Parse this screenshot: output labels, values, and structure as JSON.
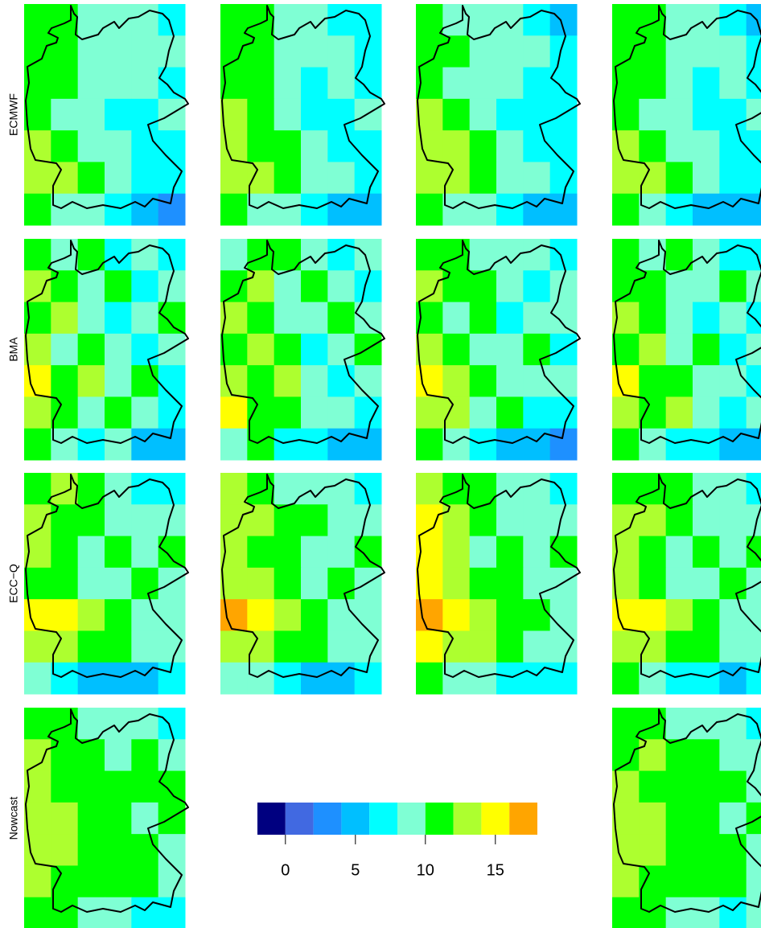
{
  "chart_data": {
    "type": "heatmap",
    "row_labels": [
      "ECMWF",
      "BMA",
      "ECC−Q",
      "Nowcast"
    ],
    "panels": [
      [
        [
          [
            11,
            11,
            9,
            8,
            8,
            6
          ],
          [
            11,
            11,
            9,
            9,
            9,
            8
          ],
          [
            11,
            11,
            9,
            8,
            8,
            7
          ],
          [
            11,
            9,
            9,
            7,
            7,
            9
          ],
          [
            13,
            11,
            9,
            9,
            7,
            7
          ],
          [
            13,
            13,
            11,
            9,
            7,
            7
          ],
          [
            11,
            9,
            9,
            7,
            5,
            3
          ]
        ],
        [
          [
            11,
            11,
            9,
            8,
            7,
            6
          ],
          [
            11,
            11,
            9,
            9,
            9,
            7
          ],
          [
            11,
            11,
            9,
            7,
            8,
            7
          ],
          [
            13,
            11,
            9,
            7,
            7,
            9
          ],
          [
            13,
            11,
            11,
            9,
            7,
            7
          ],
          [
            13,
            13,
            11,
            9,
            8,
            7
          ],
          [
            11,
            9,
            9,
            7,
            5,
            5
          ]
        ],
        [
          [
            11,
            9,
            9,
            8,
            7,
            5
          ],
          [
            11,
            11,
            9,
            9,
            8,
            7
          ],
          [
            11,
            9,
            9,
            8,
            7,
            7
          ],
          [
            13,
            11,
            9,
            7,
            7,
            7
          ],
          [
            13,
            13,
            11,
            9,
            7,
            7
          ],
          [
            13,
            13,
            11,
            9,
            8,
            7
          ],
          [
            11,
            9,
            9,
            7,
            5,
            5
          ]
        ],
        [
          [
            11,
            11,
            9,
            8,
            7,
            5
          ],
          [
            11,
            11,
            9,
            9,
            9,
            7
          ],
          [
            11,
            11,
            9,
            7,
            8,
            7
          ],
          [
            11,
            9,
            9,
            7,
            7,
            9
          ],
          [
            13,
            11,
            9,
            9,
            7,
            7
          ],
          [
            13,
            13,
            11,
            9,
            7,
            7
          ],
          [
            11,
            9,
            7,
            5,
            5,
            5
          ]
        ]
      ],
      [
        [
          [
            11,
            9,
            11,
            7,
            9,
            7
          ],
          [
            13,
            11,
            9,
            11,
            7,
            9
          ],
          [
            11,
            13,
            9,
            7,
            9,
            11
          ],
          [
            13,
            9,
            11,
            9,
            7,
            9
          ],
          [
            15,
            11,
            13,
            9,
            11,
            7
          ],
          [
            13,
            11,
            9,
            11,
            9,
            7
          ],
          [
            11,
            9,
            7,
            9,
            5,
            5
          ]
        ],
        [
          [
            9,
            11,
            11,
            9,
            7,
            9
          ],
          [
            11,
            13,
            9,
            11,
            9,
            7
          ],
          [
            13,
            11,
            9,
            9,
            11,
            9
          ],
          [
            11,
            13,
            11,
            7,
            9,
            11
          ],
          [
            13,
            11,
            13,
            9,
            7,
            9
          ],
          [
            15,
            11,
            11,
            9,
            9,
            7
          ],
          [
            9,
            11,
            7,
            7,
            5,
            5
          ]
        ],
        [
          [
            11,
            11,
            9,
            9,
            9,
            7
          ],
          [
            13,
            11,
            11,
            9,
            7,
            9
          ],
          [
            11,
            9,
            11,
            7,
            9,
            9
          ],
          [
            13,
            11,
            9,
            9,
            11,
            7
          ],
          [
            15,
            13,
            11,
            9,
            9,
            9
          ],
          [
            13,
            13,
            9,
            11,
            7,
            7
          ],
          [
            11,
            9,
            7,
            5,
            5,
            3
          ]
        ],
        [
          [
            11,
            9,
            11,
            9,
            7,
            7
          ],
          [
            11,
            11,
            9,
            9,
            11,
            9
          ],
          [
            13,
            11,
            9,
            7,
            9,
            7
          ],
          [
            11,
            13,
            9,
            11,
            7,
            9
          ],
          [
            15,
            11,
            11,
            9,
            9,
            7
          ],
          [
            13,
            11,
            13,
            9,
            7,
            9
          ],
          [
            11,
            9,
            7,
            7,
            5,
            5
          ]
        ]
      ],
      [
        [
          [
            11,
            13,
            11,
            9,
            7,
            7
          ],
          [
            13,
            11,
            11,
            9,
            9,
            9
          ],
          [
            13,
            11,
            9,
            11,
            9,
            11
          ],
          [
            11,
            11,
            9,
            9,
            11,
            9
          ],
          [
            15,
            15,
            13,
            11,
            9,
            9
          ],
          [
            13,
            13,
            11,
            11,
            9,
            9
          ],
          [
            9,
            7,
            5,
            5,
            5,
            7
          ]
        ],
        [
          [
            13,
            11,
            9,
            9,
            9,
            7
          ],
          [
            13,
            13,
            11,
            11,
            9,
            9
          ],
          [
            13,
            11,
            11,
            9,
            9,
            11
          ],
          [
            13,
            13,
            11,
            9,
            11,
            9
          ],
          [
            17,
            15,
            13,
            11,
            9,
            9
          ],
          [
            13,
            13,
            11,
            11,
            9,
            9
          ],
          [
            9,
            9,
            7,
            5,
            5,
            7
          ]
        ],
        [
          [
            13,
            11,
            11,
            9,
            9,
            7
          ],
          [
            15,
            13,
            11,
            9,
            9,
            9
          ],
          [
            15,
            13,
            9,
            11,
            9,
            11
          ],
          [
            15,
            13,
            11,
            11,
            9,
            9
          ],
          [
            17,
            15,
            13,
            11,
            11,
            9
          ],
          [
            15,
            13,
            13,
            11,
            9,
            9
          ],
          [
            11,
            9,
            9,
            7,
            7,
            7
          ]
        ],
        [
          [
            11,
            11,
            11,
            9,
            9,
            7
          ],
          [
            13,
            13,
            11,
            9,
            9,
            9
          ],
          [
            13,
            11,
            9,
            11,
            9,
            11
          ],
          [
            13,
            11,
            9,
            9,
            11,
            9
          ],
          [
            15,
            15,
            13,
            11,
            9,
            9
          ],
          [
            13,
            13,
            11,
            11,
            9,
            9
          ],
          [
            11,
            9,
            7,
            7,
            5,
            7
          ]
        ]
      ],
      [
        [
          [
            11,
            11,
            9,
            9,
            9,
            7
          ],
          [
            13,
            11,
            11,
            9,
            11,
            9
          ],
          [
            13,
            11,
            11,
            11,
            11,
            11
          ],
          [
            13,
            13,
            11,
            11,
            9,
            11
          ],
          [
            13,
            13,
            11,
            11,
            11,
            9
          ],
          [
            13,
            11,
            11,
            11,
            11,
            9
          ],
          [
            11,
            11,
            9,
            9,
            7,
            7
          ]
        ],
        null,
        null,
        [
          [
            11,
            11,
            9,
            9,
            9,
            7
          ],
          [
            11,
            13,
            11,
            11,
            9,
            9
          ],
          [
            13,
            11,
            11,
            11,
            11,
            9
          ],
          [
            13,
            13,
            11,
            11,
            9,
            11
          ],
          [
            13,
            13,
            11,
            11,
            11,
            9
          ],
          [
            13,
            11,
            11,
            11,
            11,
            9
          ],
          [
            11,
            11,
            9,
            9,
            7,
            9
          ]
        ]
      ]
    ],
    "colorbar": {
      "bins": [
        -2,
        0,
        2,
        4,
        6,
        8,
        10,
        12,
        14,
        16,
        18
      ],
      "colors": [
        "#000080",
        "#4169E1",
        "#1E90FF",
        "#00BFFF",
        "#00FFFF",
        "#7FFFD4",
        "#00FF00",
        "#ADFF2F",
        "#FFFF00",
        "#FFA500"
      ],
      "ticks": [
        0,
        5,
        10,
        15
      ]
    }
  }
}
